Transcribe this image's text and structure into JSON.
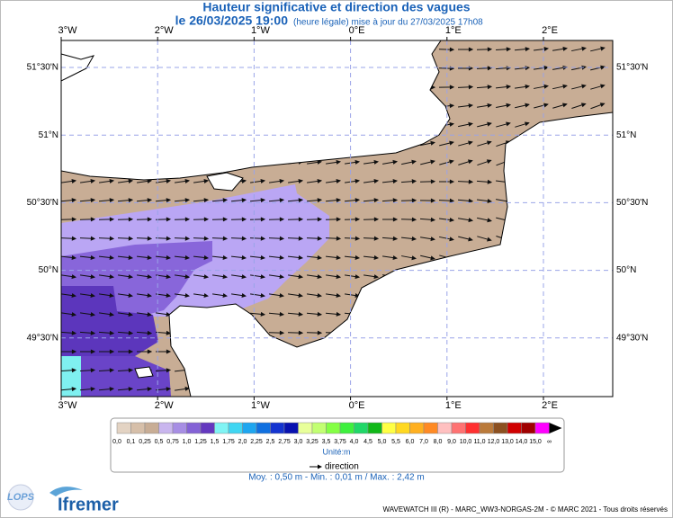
{
  "header": {
    "title": "Hauteur significative et direction des vagues",
    "date": "le 26/03/2025 19:00",
    "update": "(heure légale) mise à jour du 27/03/2025 17h08"
  },
  "map": {
    "lon_labels": [
      "3°W",
      "2°W",
      "1°W",
      "0°E",
      "1°E",
      "2°E"
    ],
    "lat_labels": [
      "51°30'N",
      "51°N",
      "50°30'N",
      "50°N",
      "49°30'N"
    ]
  },
  "legend": {
    "labels": [
      "0,0",
      "0,1",
      "0,25",
      "0,5",
      "0,75",
      "1,0",
      "1,25",
      "1,5",
      "1,75",
      "2,0",
      "2,25",
      "2,5",
      "2,75",
      "3,0",
      "3,25",
      "3,5",
      "3,75",
      "4,0",
      "4,5",
      "5,0",
      "5,5",
      "6,0",
      "7,0",
      "8,0",
      "9,0",
      "10,0",
      "11,0",
      "12,0",
      "13,0",
      "14,0",
      "15,0",
      "∞"
    ],
    "colors": [
      "#e3d3c3",
      "#d6bfa9",
      "#c8ad95",
      "#c9b6ee",
      "#a78ee4",
      "#8462d6",
      "#6438bf",
      "#80f4f4",
      "#40d6f2",
      "#1ea6f0",
      "#1070e0",
      "#1434d0",
      "#0812b0",
      "#e8ff9a",
      "#c2ff72",
      "#84ff44",
      "#3ef03e",
      "#20d868",
      "#10b818",
      "#ffff44",
      "#ffd820",
      "#ffb020",
      "#ff8a24",
      "#ffc0c0",
      "#ff7272",
      "#ff3030",
      "#ba7a3a",
      "#8c5020",
      "#d00000",
      "#a00000",
      "#ff00ff"
    ],
    "unit": "Unité:m",
    "direction": "direction"
  },
  "stats": "Moy. : 0,50 m   -   Min. : 0,01 m / Max. : 2,42 m",
  "footer": "WAVEWATCH III (R) - MARC_WW3-NORGAS-2M - © MARC 2021 - Tous droits réservés",
  "logos": {
    "lops": "LOPS",
    "ifremer": "Ifremer"
  }
}
